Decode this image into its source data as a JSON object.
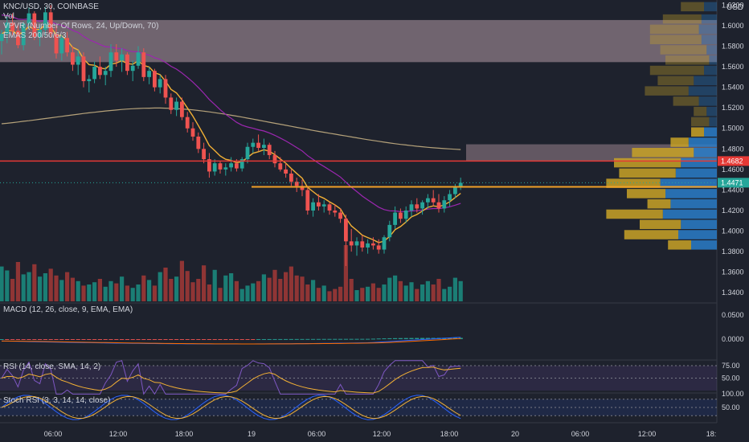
{
  "header": {
    "symbol_line": "KNC/USD, 30, COINBASE",
    "vol_label": "Vol",
    "vpvr_label": "VPVR (Number Of Rows, 24, Up/Down, 70)",
    "emas_label": "EMAS 200/50/6/3",
    "currency": "USD"
  },
  "indicators": {
    "macd_label": "MACD (12, 26, close, 9, EMA, EMA)",
    "rsi_label": "RSI (14, close, SMA, 14, 2)",
    "stoch_label": "Stoch RSI (3, 3, 14, 14, close)"
  },
  "colors": {
    "background": "#1e222d",
    "up": "#26a69a",
    "down": "#ef5350",
    "vol_up": "#1b7e75",
    "vol_down": "#8f3535",
    "ema200": "#b5a27a",
    "ema50": "#9c27b0",
    "ema6": "#f2b035",
    "resistance_line": "#e53935",
    "support_line": "#f0a028",
    "zone": "#b59aa5",
    "vpvr_up": "#2a7dc9",
    "vpvr_down": "#c9a227",
    "rsi_line": "#7e57c2",
    "rsi_ma": "#f2b035",
    "macd_line": "#2962ff",
    "signal_line": "#ff6d00"
  },
  "price_axis": {
    "labels": [
      "1.6200",
      "1.6000",
      "1.5800",
      "1.5600",
      "1.5400",
      "1.5200",
      "1.5000",
      "1.4800",
      "1.4600",
      "1.4400",
      "1.4200",
      "1.4000",
      "1.3800",
      "1.3600",
      "1.3400"
    ],
    "resistance_tag": "1.4682",
    "current_tag": "1.4471"
  },
  "macd_axis": {
    "labels": [
      "0.0500",
      "0.0000"
    ]
  },
  "rsi_axis": {
    "labels": [
      "75.00",
      "50.00"
    ]
  },
  "stoch_axis": {
    "labels": [
      "100.00",
      "50.00"
    ]
  },
  "time_axis": {
    "labels": [
      "06:00",
      "12:00",
      "18:00",
      "19",
      "06:00",
      "12:00",
      "18:00",
      "20",
      "06:00",
      "12:00",
      "18:"
    ]
  },
  "chart_data": {
    "type": "candlestick",
    "symbol": "KNC/USD",
    "interval": "30",
    "exchange": "COINBASE",
    "ylim": [
      1.33,
      1.625
    ],
    "current_price": 1.4471,
    "resistance_level": 1.4682,
    "support_level": 1.4431,
    "sell_zone": [
      1.5645,
      1.6055
    ],
    "ohlc": [
      [
        1.585,
        1.596,
        1.572,
        1.592
      ],
      [
        1.592,
        1.609,
        1.583,
        1.603
      ],
      [
        1.603,
        1.612,
        1.59,
        1.595
      ],
      [
        1.595,
        1.602,
        1.578,
        1.581
      ],
      [
        1.581,
        1.604,
        1.576,
        1.602
      ],
      [
        1.602,
        1.618,
        1.596,
        1.612
      ],
      [
        1.612,
        1.614,
        1.586,
        1.589
      ],
      [
        1.589,
        1.601,
        1.58,
        1.596
      ],
      [
        1.596,
        1.618,
        1.59,
        1.613
      ],
      [
        1.613,
        1.62,
        1.588,
        1.592
      ],
      [
        1.592,
        1.6,
        1.568,
        1.573
      ],
      [
        1.573,
        1.591,
        1.566,
        1.588
      ],
      [
        1.588,
        1.594,
        1.57,
        1.574
      ],
      [
        1.574,
        1.58,
        1.556,
        1.562
      ],
      [
        1.562,
        1.576,
        1.552,
        1.57
      ],
      [
        1.57,
        1.574,
        1.54,
        1.546
      ],
      [
        1.546,
        1.552,
        1.535,
        1.548
      ],
      [
        1.548,
        1.565,
        1.544,
        1.56
      ],
      [
        1.56,
        1.57,
        1.548,
        1.552
      ],
      [
        1.552,
        1.56,
        1.542,
        1.556
      ],
      [
        1.556,
        1.582,
        1.55,
        1.574
      ],
      [
        1.574,
        1.582,
        1.56,
        1.566
      ],
      [
        1.566,
        1.578,
        1.555,
        1.572
      ],
      [
        1.572,
        1.574,
        1.552,
        1.556
      ],
      [
        1.556,
        1.566,
        1.546,
        1.561
      ],
      [
        1.561,
        1.58,
        1.558,
        1.574
      ],
      [
        1.574,
        1.578,
        1.546,
        1.55
      ],
      [
        1.55,
        1.56,
        1.543,
        1.556
      ],
      [
        1.556,
        1.558,
        1.536,
        1.54
      ],
      [
        1.54,
        1.552,
        1.534,
        1.548
      ],
      [
        1.548,
        1.552,
        1.524,
        1.53
      ],
      [
        1.53,
        1.534,
        1.514,
        1.518
      ],
      [
        1.518,
        1.53,
        1.512,
        1.526
      ],
      [
        1.526,
        1.53,
        1.508,
        1.511
      ],
      [
        1.511,
        1.516,
        1.496,
        1.5
      ],
      [
        1.5,
        1.506,
        1.488,
        1.492
      ],
      [
        1.492,
        1.496,
        1.476,
        1.48
      ],
      [
        1.48,
        1.486,
        1.466,
        1.47
      ],
      [
        1.47,
        1.476,
        1.452,
        1.458
      ],
      [
        1.458,
        1.47,
        1.454,
        1.466
      ],
      [
        1.466,
        1.468,
        1.456,
        1.46
      ],
      [
        1.46,
        1.466,
        1.454,
        1.462
      ],
      [
        1.462,
        1.472,
        1.458,
        1.466
      ],
      [
        1.466,
        1.47,
        1.458,
        1.461
      ],
      [
        1.461,
        1.472,
        1.458,
        1.47
      ],
      [
        1.47,
        1.486,
        1.466,
        1.482
      ],
      [
        1.482,
        1.49,
        1.476,
        1.486
      ],
      [
        1.486,
        1.494,
        1.478,
        1.481
      ],
      [
        1.481,
        1.49,
        1.474,
        1.484
      ],
      [
        1.484,
        1.486,
        1.47,
        1.474
      ],
      [
        1.474,
        1.478,
        1.462,
        1.466
      ],
      [
        1.466,
        1.472,
        1.458,
        1.46
      ],
      [
        1.46,
        1.466,
        1.452,
        1.456
      ],
      [
        1.456,
        1.46,
        1.444,
        1.448
      ],
      [
        1.448,
        1.452,
        1.438,
        1.444
      ],
      [
        1.444,
        1.45,
        1.434,
        1.44
      ],
      [
        1.44,
        1.444,
        1.416,
        1.42
      ],
      [
        1.42,
        1.432,
        1.414,
        1.428
      ],
      [
        1.428,
        1.436,
        1.42,
        1.424
      ],
      [
        1.424,
        1.43,
        1.418,
        1.426
      ],
      [
        1.426,
        1.428,
        1.416,
        1.42
      ],
      [
        1.42,
        1.426,
        1.414,
        1.418
      ],
      [
        1.418,
        1.422,
        1.408,
        1.412
      ],
      [
        1.412,
        1.416,
        1.366,
        1.39
      ],
      [
        1.39,
        1.402,
        1.38,
        1.386
      ],
      [
        1.386,
        1.394,
        1.376,
        1.39
      ],
      [
        1.39,
        1.396,
        1.38,
        1.384
      ],
      [
        1.384,
        1.392,
        1.378,
        1.388
      ],
      [
        1.388,
        1.394,
        1.382,
        1.386
      ],
      [
        1.386,
        1.392,
        1.378,
        1.382
      ],
      [
        1.382,
        1.396,
        1.378,
        1.394
      ],
      [
        1.394,
        1.41,
        1.39,
        1.406
      ],
      [
        1.406,
        1.424,
        1.402,
        1.418
      ],
      [
        1.418,
        1.422,
        1.408,
        1.412
      ],
      [
        1.412,
        1.424,
        1.408,
        1.42
      ],
      [
        1.42,
        1.43,
        1.414,
        1.426
      ],
      [
        1.426,
        1.432,
        1.418,
        1.422
      ],
      [
        1.422,
        1.43,
        1.416,
        1.428
      ],
      [
        1.428,
        1.436,
        1.422,
        1.432
      ],
      [
        1.432,
        1.44,
        1.424,
        1.428
      ],
      [
        1.428,
        1.436,
        1.418,
        1.422
      ],
      [
        1.422,
        1.434,
        1.418,
        1.43
      ],
      [
        1.43,
        1.44,
        1.424,
        1.436
      ],
      [
        1.436,
        1.446,
        1.432,
        1.443
      ],
      [
        1.443,
        1.452,
        1.44,
        1.447
      ]
    ],
    "volume": [
      0.62,
      0.55,
      0.4,
      0.7,
      0.48,
      0.52,
      0.66,
      0.44,
      0.5,
      0.58,
      0.46,
      0.38,
      0.52,
      0.42,
      0.36,
      0.28,
      0.3,
      0.34,
      0.4,
      0.26,
      0.36,
      0.32,
      0.44,
      0.28,
      0.24,
      0.3,
      0.46,
      0.38,
      0.28,
      0.52,
      0.6,
      0.4,
      0.44,
      0.72,
      0.54,
      0.34,
      0.4,
      0.64,
      0.3,
      0.56,
      0.24,
      0.46,
      0.5,
      0.36,
      0.22,
      0.28,
      0.32,
      0.36,
      0.48,
      0.42,
      0.56,
      0.4,
      0.52,
      0.62,
      0.46,
      0.44,
      0.3,
      0.38,
      0.24,
      0.28,
      0.18,
      0.22,
      0.26,
      1.0,
      0.4,
      0.2,
      0.24,
      0.26,
      0.32,
      0.24,
      0.3,
      0.42,
      0.46,
      0.36,
      0.28,
      0.34,
      0.22,
      0.3,
      0.36,
      0.3,
      0.4,
      0.22,
      0.26,
      0.42,
      0.36
    ],
    "vpvr": [
      {
        "price": 1.618,
        "up": 0.1,
        "down": 0.18
      },
      {
        "price": 1.606,
        "up": 0.12,
        "down": 0.3
      },
      {
        "price": 1.596,
        "up": 0.14,
        "down": 0.38
      },
      {
        "price": 1.586,
        "up": 0.12,
        "down": 0.4
      },
      {
        "price": 1.576,
        "up": 0.08,
        "down": 0.36
      },
      {
        "price": 1.566,
        "up": 0.06,
        "down": 0.34
      },
      {
        "price": 1.556,
        "up": 0.1,
        "down": 0.42
      },
      {
        "price": 1.546,
        "up": 0.18,
        "down": 0.28
      },
      {
        "price": 1.536,
        "up": 0.22,
        "down": 0.34
      },
      {
        "price": 1.526,
        "up": 0.14,
        "down": 0.2
      },
      {
        "price": 1.516,
        "up": 0.08,
        "down": 0.1
      },
      {
        "price": 1.506,
        "up": 0.06,
        "down": 0.14
      },
      {
        "price": 1.496,
        "up": 0.1,
        "down": 0.1
      },
      {
        "price": 1.486,
        "up": 0.22,
        "down": 0.14
      },
      {
        "price": 1.476,
        "up": 0.18,
        "down": 0.48
      },
      {
        "price": 1.466,
        "up": 0.28,
        "down": 0.52
      },
      {
        "price": 1.456,
        "up": 0.32,
        "down": 0.44
      },
      {
        "price": 1.446,
        "up": 0.44,
        "down": 0.42
      },
      {
        "price": 1.436,
        "up": 0.4,
        "down": 0.3
      },
      {
        "price": 1.426,
        "up": 0.36,
        "down": 0.18
      },
      {
        "price": 1.416,
        "up": 0.42,
        "down": 0.44
      },
      {
        "price": 1.406,
        "up": 0.28,
        "down": 0.32
      },
      {
        "price": 1.396,
        "up": 0.3,
        "down": 0.42
      },
      {
        "price": 1.386,
        "up": 0.2,
        "down": 0.18
      }
    ],
    "ema200": [
      1.5045,
      1.505,
      1.5056,
      1.5062,
      1.5069,
      1.5075,
      1.5082,
      1.5089,
      1.5096,
      1.5103,
      1.511,
      1.5117,
      1.5124,
      1.5131,
      1.5138,
      1.5145,
      1.5151,
      1.5157,
      1.5163,
      1.5169,
      1.5174,
      1.5179,
      1.5184,
      1.5188,
      1.5191,
      1.5194,
      1.5196,
      1.5197,
      1.5198,
      1.5198,
      1.5197,
      1.5195,
      1.5192,
      1.5189,
      1.5185,
      1.518,
      1.5174,
      1.5168,
      1.5161,
      1.5153,
      1.5145,
      1.5137,
      1.5128,
      1.5119,
      1.511,
      1.51,
      1.509,
      1.508,
      1.507,
      1.506,
      1.505,
      1.504,
      1.503,
      1.502,
      1.501,
      1.5,
      1.499,
      1.498,
      1.4971,
      1.4962,
      1.4953,
      1.4944,
      1.4935,
      1.4926,
      1.4917,
      1.4908,
      1.4899,
      1.489,
      1.4882,
      1.4874,
      1.4866,
      1.4858,
      1.4851,
      1.4844,
      1.4838,
      1.4832,
      1.4826,
      1.4821,
      1.4816,
      1.4811,
      1.4807,
      1.4803,
      1.48,
      1.4797,
      1.4794
    ]
  }
}
